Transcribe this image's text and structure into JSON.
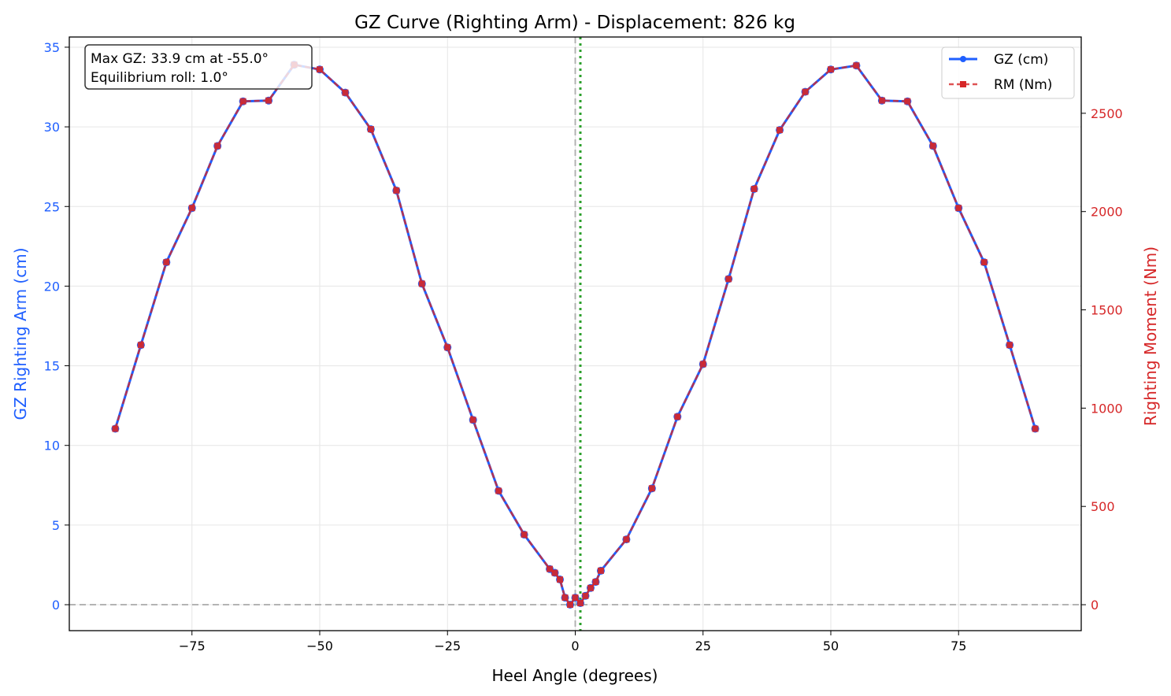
{
  "chart_data": {
    "type": "line",
    "title": "GZ Curve (Righting Arm) - Displacement: 826 kg",
    "xlabel": "Heel Angle (degrees)",
    "ylabel": "GZ Righting Arm (cm)",
    "ylabel_right": "Righting Moment (Nm)",
    "xlim": [
      -99,
      99
    ],
    "ylim": [
      -1.63,
      35.64
    ],
    "ylim_right": [
      -132,
      2888
    ],
    "xticks": [
      -75,
      -50,
      -25,
      0,
      25,
      50,
      75
    ],
    "yticks": [
      0,
      5,
      10,
      15,
      20,
      25,
      30,
      35
    ],
    "yticks_right": [
      0,
      500,
      1000,
      1500,
      2000,
      2500
    ],
    "grid": true,
    "legend_position": "top-right",
    "x": [
      -90,
      -85,
      -80,
      -75,
      -70,
      -65,
      -60,
      -55,
      -50,
      -45,
      -40,
      -35,
      -30,
      -25,
      -20,
      -15,
      -10,
      -5,
      -4,
      -3,
      -2,
      -1,
      0,
      1,
      2,
      3,
      4,
      5,
      10,
      15,
      20,
      25,
      30,
      35,
      40,
      45,
      50,
      55,
      60,
      65,
      70,
      75,
      80,
      85,
      90
    ],
    "series": [
      {
        "name": "GZ (cm)",
        "axis": "left",
        "color": "#1f5fff",
        "values": [
          11.05,
          16.3,
          21.5,
          24.9,
          28.8,
          31.6,
          31.65,
          33.9,
          33.6,
          32.15,
          29.85,
          26.0,
          20.15,
          16.15,
          11.6,
          7.15,
          4.4,
          2.24,
          2.0,
          1.58,
          0.44,
          0.0,
          0.44,
          0.1,
          0.56,
          1.05,
          1.43,
          2.13,
          4.1,
          7.3,
          11.8,
          15.1,
          20.45,
          26.1,
          29.8,
          32.2,
          33.6,
          33.85,
          31.65,
          31.6,
          28.8,
          24.9,
          21.5,
          16.3,
          11.05
        ]
      },
      {
        "name": "RM (Nm)",
        "axis": "right",
        "color": "#d62728",
        "values": [
          895,
          1321,
          1742,
          2018,
          2334,
          2561,
          2565,
          2747,
          2723,
          2605,
          2419,
          2107,
          1633,
          1309,
          940,
          579,
          357,
          182,
          162,
          128,
          36,
          0,
          36,
          8,
          45,
          85,
          116,
          173,
          332,
          592,
          956,
          1224,
          1657,
          2115,
          2415,
          2609,
          2723,
          2743,
          2565,
          2561,
          2334,
          2018,
          1742,
          1321,
          895
        ]
      }
    ],
    "reference_lines": {
      "zero_heel": 0,
      "zero_gz": 0,
      "equilibrium_roll": 1.0,
      "equilibrium_color": "#2ca02c"
    },
    "annotation": {
      "line1": "Max GZ: 33.9 cm at -55.0°",
      "line2": "Equilibrium roll: 1.0°"
    }
  }
}
